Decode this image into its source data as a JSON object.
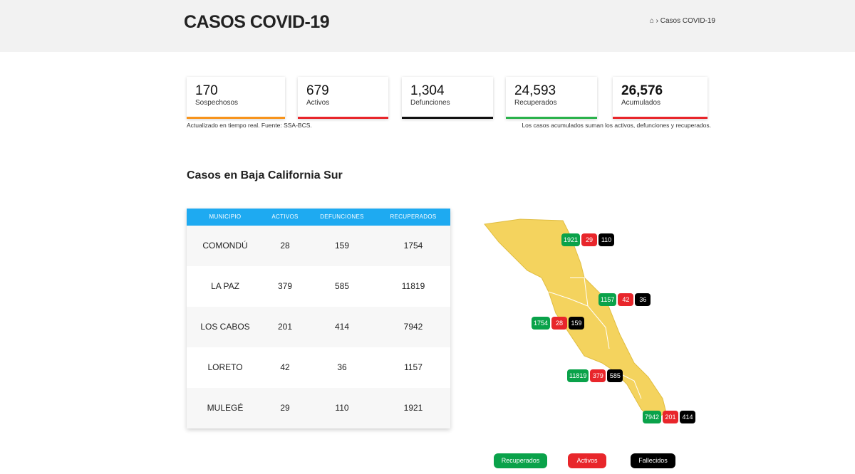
{
  "header": {
    "title": "CASOS COVID-19",
    "breadcrumb": "Casos COVID-19"
  },
  "cards": [
    {
      "value": "170",
      "label": "Sospechosos",
      "color": "#f7941d"
    },
    {
      "value": "679",
      "label": "Activos",
      "color": "#e8262b"
    },
    {
      "value": "1,304",
      "label": "Defunciones",
      "color": "#111111"
    },
    {
      "value": "24,593",
      "label": "Recuperados",
      "color": "#2bb24c"
    },
    {
      "value": "26,576",
      "label": "Acumulados",
      "color": "#e8262b"
    }
  ],
  "notes": {
    "left": "Actualizado en tiempo real. Fuente: SSA-BCS.",
    "right": "Los casos acumulados suman los activos, defunciones y recuperados."
  },
  "section_title": "Casos en Baja California Sur",
  "table": {
    "headers": [
      "MUNICIPIO",
      "ACTIVOS",
      "DEFUNCIONES",
      "RECUPERADOS"
    ],
    "rows": [
      [
        "COMONDÚ",
        28,
        159,
        1754
      ],
      [
        "LA PAZ",
        379,
        585,
        11819
      ],
      [
        "LOS CABOS",
        201,
        414,
        7942
      ],
      [
        "LORETO",
        42,
        36,
        1157
      ],
      [
        "MULEGÉ",
        29,
        110,
        1921
      ]
    ]
  },
  "legend": [
    "Recuperados",
    "Activos",
    "Fallecidos"
  ]
}
